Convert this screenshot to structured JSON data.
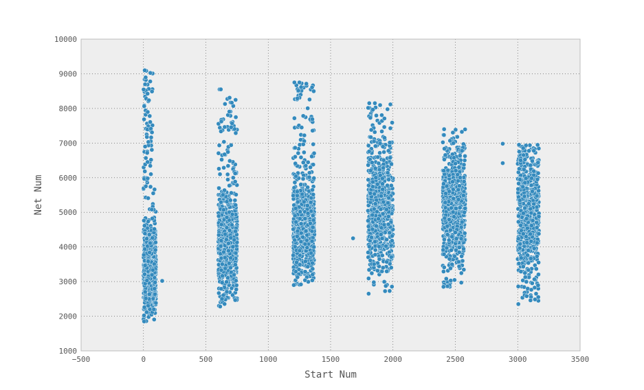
{
  "chart_data": {
    "type": "scatter",
    "title": "",
    "xlabel": "Start Num",
    "ylabel": "Net Num",
    "xlim": [
      -500,
      3500
    ],
    "ylim": [
      1000,
      10000
    ],
    "xticks": [
      -500,
      0,
      500,
      1000,
      1500,
      2000,
      2500,
      3000,
      3500
    ],
    "yticks": [
      1000,
      2000,
      3000,
      4000,
      5000,
      6000,
      7000,
      8000,
      9000,
      10000
    ],
    "xtick_labels": [
      "−500",
      "0",
      "500",
      "1000",
      "1500",
      "2000",
      "2500",
      "3000",
      "3500"
    ],
    "ytick_labels": [
      "1000",
      "2000",
      "3000",
      "4000",
      "5000",
      "6000",
      "7000",
      "8000",
      "9000",
      "10000"
    ],
    "grid": true,
    "grid_style": "dotted",
    "marker_color": "#348abd",
    "marker_edge": "#ffffff",
    "background": "#eeeeee",
    "clusters": [
      {
        "x_range": [
          0,
          100
        ],
        "y_range": [
          1850,
          9100
        ],
        "y_center": 3300,
        "y_spread": 650,
        "density": "high-low"
      },
      {
        "x_range": [
          600,
          750
        ],
        "y_range": [
          2300,
          8550
        ],
        "y_center": 4200,
        "y_spread": 700,
        "density": "high-low"
      },
      {
        "x_range": [
          1200,
          1370
        ],
        "y_range": [
          2900,
          8750
        ],
        "y_center": 4600,
        "y_spread": 800,
        "density": "medium"
      },
      {
        "x_range": [
          1800,
          2000
        ],
        "y_range": [
          2650,
          8150
        ],
        "y_center": 5000,
        "y_spread": 850,
        "density": "medium"
      },
      {
        "x_range": [
          2400,
          2580
        ],
        "y_range": [
          2850,
          7400
        ],
        "y_center": 5100,
        "y_spread": 750,
        "density": "medium"
      },
      {
        "x_range": [
          3000,
          3170
        ],
        "y_range": [
          2350,
          6950
        ],
        "y_center": 5000,
        "y_spread": 800,
        "density": "medium"
      }
    ],
    "outliers": [
      {
        "x": 150,
        "y": 3020
      },
      {
        "x": 620,
        "y": 8550
      },
      {
        "x": 615,
        "y": 2280
      },
      {
        "x": 1250,
        "y": 8750
      },
      {
        "x": 1680,
        "y": 4250
      },
      {
        "x": 1855,
        "y": 8150
      },
      {
        "x": 2880,
        "y": 6980
      },
      {
        "x": 2880,
        "y": 6420
      }
    ]
  }
}
